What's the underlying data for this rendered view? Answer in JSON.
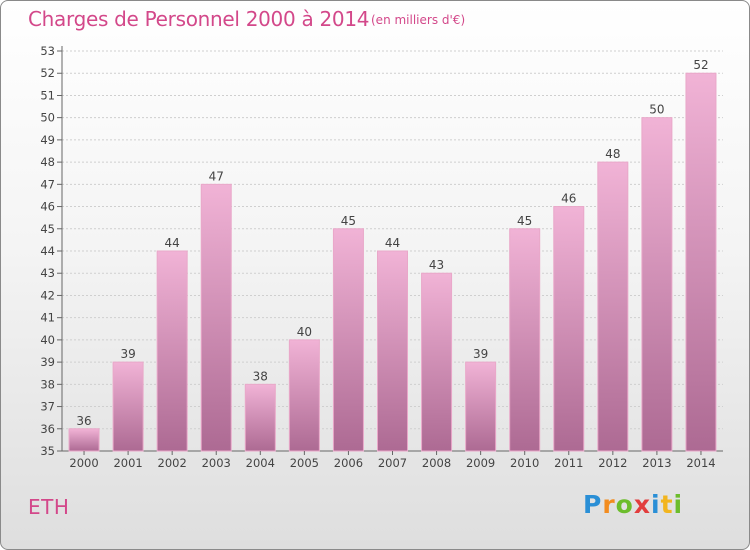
{
  "header": {
    "title": "Charges de Personnel 2000 à 2014",
    "subtitle": "(en milliers d'€)"
  },
  "footer": {
    "commune": "ETH",
    "brand_letters": [
      {
        "char": "P",
        "color": "#2a8fd6"
      },
      {
        "char": "r",
        "color": "#f28c1f"
      },
      {
        "char": "o",
        "color": "#6cbd2c"
      },
      {
        "char": "x",
        "color": "#e23d3d"
      },
      {
        "char": "i",
        "color": "#2a8fd6"
      },
      {
        "char": "t",
        "color": "#f2b51f"
      },
      {
        "char": "i",
        "color": "#6cbd2c"
      }
    ]
  },
  "colors": {
    "bar_top": "#f1b3d6",
    "bar_bottom": "#ad6a93",
    "accent": "#d3488a",
    "grid": "#cfcfcf"
  },
  "chart_data": {
    "type": "bar",
    "categories": [
      "2000",
      "2001",
      "2002",
      "2003",
      "2004",
      "2005",
      "2006",
      "2007",
      "2008",
      "2009",
      "2010",
      "2011",
      "2012",
      "2013",
      "2014"
    ],
    "values": [
      36,
      39,
      44,
      47,
      38,
      40,
      45,
      44,
      43,
      39,
      45,
      46,
      48,
      50,
      52
    ],
    "yticks": [
      35,
      36,
      37,
      38,
      39,
      40,
      41,
      42,
      43,
      44,
      45,
      46,
      47,
      48,
      49,
      50,
      51,
      52,
      53
    ],
    "ylim": [
      35,
      53
    ],
    "grid": true
  }
}
